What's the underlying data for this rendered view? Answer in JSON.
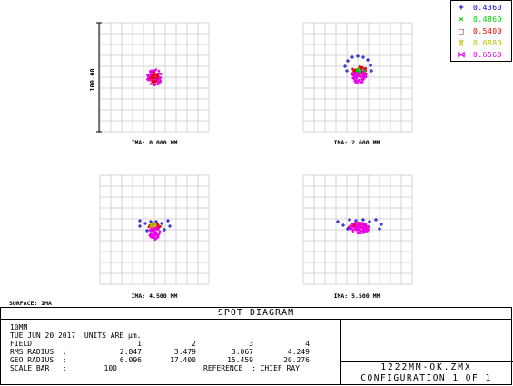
{
  "legend": [
    {
      "symbol": "+",
      "value": "0.4360",
      "color": "#0000cc",
      "icon": "plus-icon"
    },
    {
      "symbol": "×",
      "value": "0.4860",
      "color": "#00cc00",
      "icon": "cross-icon"
    },
    {
      "symbol": "□",
      "value": "0.5400",
      "color": "#dd0000",
      "icon": "square-icon"
    },
    {
      "symbol": "⧖",
      "value": "0.6880",
      "color": "#bbbb00",
      "icon": "hourglass-icon"
    },
    {
      "symbol": "⋈",
      "value": "0.6560",
      "color": "#dd00dd",
      "icon": "bowtie-icon"
    }
  ],
  "scale_label": "100.00",
  "fields": [
    {
      "label": "IMA: 0.000 MM"
    },
    {
      "label": "IMA: 2.600 MM"
    },
    {
      "label": "IMA: 4.500 MM"
    },
    {
      "label": "IMA: 5.500 MM"
    }
  ],
  "surface": "SURFACE: IMA",
  "title": "SPOT DIAGRAM",
  "info": {
    "name": "10MM",
    "date_line": "TUE JUN 20 2017  UNITS ARE µm.",
    "field_label": "FIELD",
    "field_cols": [
      "1",
      "2",
      "3",
      "4"
    ],
    "rms_label": "RMS RADIUS  :",
    "rms_values": [
      "2.847",
      "3.479",
      "3.067",
      "4.249"
    ],
    "geo_label": "GEO RADIUS  :",
    "geo_values": [
      "6.096",
      "17.400",
      "15.459",
      "20.276"
    ],
    "scale_bar_label": "SCALE BAR   :",
    "scale_bar_value": "100",
    "reference": "REFERENCE  : CHIEF RAY"
  },
  "file": {
    "name": "1222MM-OK.ZMX",
    "config": "CONFIGURATION 1 OF 1"
  }
}
